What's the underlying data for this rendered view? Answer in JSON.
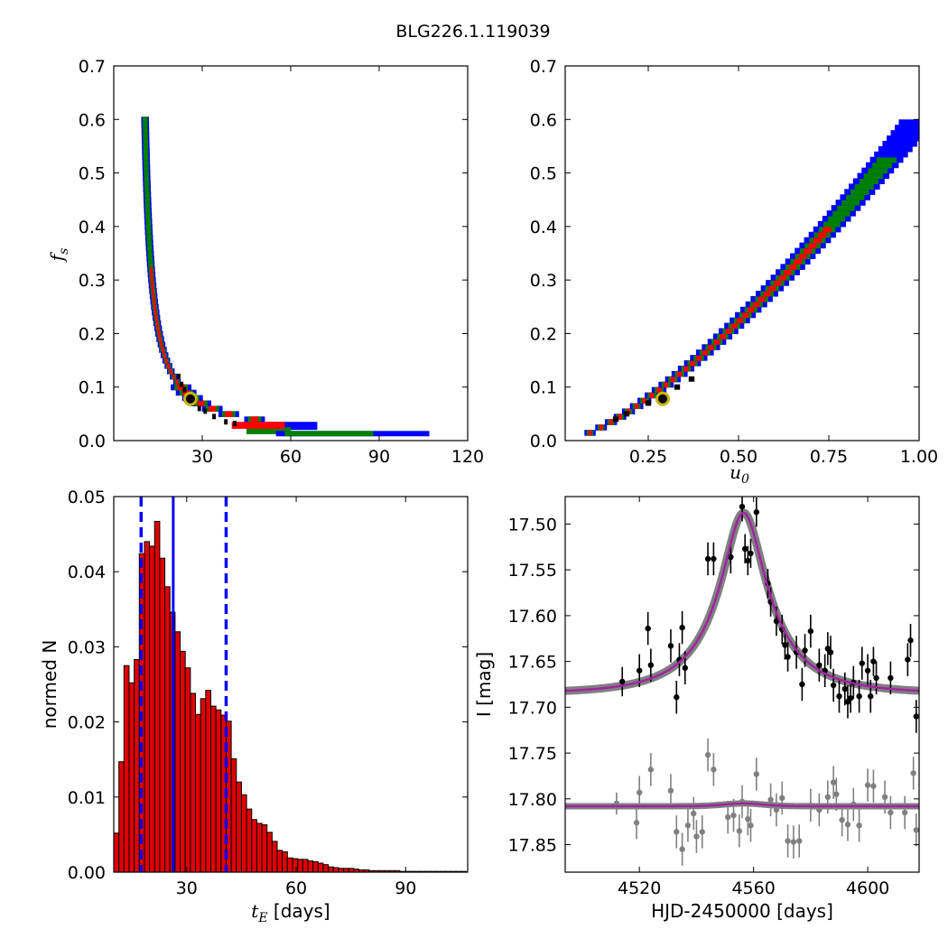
{
  "figure_title": "BLG226.1.119039",
  "colors": {
    "blue": "#0000ff",
    "green": "#008000",
    "red": "#ff0000",
    "black": "#000000",
    "marker": "#c8b400",
    "hist": "#e00000",
    "model": "#a0249f",
    "grey": "#808080"
  },
  "chart_data": [
    {
      "id": "fs-vs-te",
      "type": "heatmap",
      "title": "",
      "xlabel": "",
      "ylabel_var": "f",
      "ylabel_sub": "s",
      "xlim": [
        0,
        120
      ],
      "ylim": [
        0,
        0.7
      ],
      "xticks": [
        30,
        60,
        90,
        120
      ],
      "yticks": [
        0.0,
        0.1,
        0.2,
        0.3,
        0.4,
        0.5,
        0.6,
        0.7
      ],
      "best_fit": {
        "x": 26,
        "y": 0.078
      },
      "contour_note": "confidence regions: blue (outer), green (middle), red (inner), black (best)"
    },
    {
      "id": "fs-vs-u0",
      "type": "heatmap",
      "title": "",
      "xlabel_var": "u",
      "xlabel_sub": "0",
      "ylabel": "",
      "xlim": [
        0.02,
        1.0
      ],
      "ylim": [
        0,
        0.7
      ],
      "xticks": [
        0.25,
        0.5,
        0.75,
        1.0
      ],
      "yticks": [
        0.0,
        0.1,
        0.2,
        0.3,
        0.4,
        0.5,
        0.6,
        0.7
      ],
      "best_fit": {
        "x": 0.29,
        "y": 0.078
      }
    },
    {
      "id": "te-histogram",
      "type": "bar",
      "title": "",
      "xlabel_var": "t",
      "xlabel_sub": "E",
      "xlabel_rest": " [days]",
      "ylabel": "normed N",
      "xlim": [
        10,
        107
      ],
      "ylim": [
        0,
        0.05
      ],
      "xticks": [
        30,
        60,
        90
      ],
      "yticks": [
        0.0,
        0.01,
        0.02,
        0.03,
        0.04,
        0.05
      ],
      "bin_start": 10,
      "bin_width": 1.4,
      "values": [
        0.0052,
        0.0147,
        0.0275,
        0.0252,
        0.0283,
        0.0424,
        0.044,
        0.0434,
        0.0467,
        0.0418,
        0.038,
        0.0346,
        0.032,
        0.0294,
        0.0272,
        0.0238,
        0.021,
        0.0231,
        0.0242,
        0.0221,
        0.0216,
        0.0209,
        0.0201,
        0.0151,
        0.012,
        0.0103,
        0.0084,
        0.007,
        0.0065,
        0.0063,
        0.0053,
        0.0041,
        0.0029,
        0.0027,
        0.0019,
        0.0018,
        0.0017,
        0.0017,
        0.0015,
        0.0014,
        0.0012,
        0.001,
        0.0007,
        0.0006,
        0.0005,
        0.0005,
        0.0005,
        0.0004,
        0.0003,
        0.0003,
        0.0002,
        0.0002,
        0.0002,
        0.0002,
        0.0002,
        0.0002,
        0.0001,
        0.0001,
        0.0001,
        0.0001,
        0.0001,
        0.0001,
        0.0001,
        0.0001,
        0.0001,
        0.0001,
        0.0001,
        0.0001,
        0.0001
      ],
      "median": 26.3,
      "bounds": [
        17.5,
        40.8
      ]
    },
    {
      "id": "lightcurve",
      "type": "scatter",
      "title": "",
      "xlabel": "HJD-2450000 [days]",
      "ylabel": "I [mag]",
      "xlim": [
        4494,
        4618
      ],
      "ylim": [
        17.88,
        17.47
      ],
      "xticks": [
        4520,
        4560,
        4600
      ],
      "yticks": [
        17.5,
        17.55,
        17.6,
        17.65,
        17.7,
        17.75,
        17.8,
        17.85
      ],
      "model": {
        "t0": 4556.5,
        "tE": 26,
        "u0": 0.29,
        "fs": 0.078,
        "base": 17.685
      },
      "residual_base": 17.808,
      "points": [
        [
          4514,
          17.672,
          0.016
        ],
        [
          4520,
          17.66,
          0.018
        ],
        [
          4523,
          17.614,
          0.018
        ],
        [
          4524,
          17.654,
          0.018
        ],
        [
          4531,
          17.633,
          0.018
        ],
        [
          4533,
          17.689,
          0.018
        ],
        [
          4534,
          17.648,
          0.018
        ],
        [
          4535,
          17.613,
          0.018
        ],
        [
          4536,
          17.657,
          0.018
        ],
        [
          4544,
          17.538,
          0.018
        ],
        [
          4546,
          17.538,
          0.018
        ],
        [
          4552,
          17.536,
          0.018
        ],
        [
          4556,
          17.481,
          0.016
        ],
        [
          4557,
          17.527,
          0.016
        ],
        [
          4558,
          17.54,
          0.016
        ],
        [
          4559,
          17.532,
          0.016
        ],
        [
          4561,
          17.487,
          0.016
        ],
        [
          4565,
          17.565,
          0.016
        ],
        [
          4566,
          17.585,
          0.016
        ],
        [
          4568,
          17.606,
          0.016
        ],
        [
          4570,
          17.615,
          0.016
        ],
        [
          4571,
          17.632,
          0.016
        ],
        [
          4572,
          17.645,
          0.016
        ],
        [
          4575,
          17.64,
          0.018
        ],
        [
          4577,
          17.675,
          0.018
        ],
        [
          4578,
          17.638,
          0.018
        ],
        [
          4580,
          17.617,
          0.018
        ],
        [
          4583,
          17.654,
          0.018
        ],
        [
          4586,
          17.636,
          0.018
        ],
        [
          4587,
          17.64,
          0.018
        ],
        [
          4588,
          17.676,
          0.018
        ],
        [
          4590,
          17.688,
          0.018
        ],
        [
          4592,
          17.68,
          0.018
        ],
        [
          4593,
          17.694,
          0.018
        ],
        [
          4595,
          17.673,
          0.018
        ],
        [
          4597,
          17.688,
          0.018
        ],
        [
          4598,
          17.652,
          0.018
        ],
        [
          4600,
          17.66,
          0.018
        ],
        [
          4601,
          17.688,
          0.018
        ],
        [
          4603,
          17.668,
          0.018
        ],
        [
          4608,
          17.668,
          0.018
        ],
        [
          4614,
          17.648,
          0.018
        ],
        [
          4615,
          17.627,
          0.018
        ],
        [
          4617,
          17.71,
          0.018
        ],
        [
          4594,
          17.69,
          0.016
        ],
        [
          4602,
          17.65,
          0.016
        ],
        [
          4585,
          17.66,
          0.018
        ]
      ],
      "residuals": [
        [
          4512,
          17.805,
          0.012
        ],
        [
          4519,
          17.826,
          0.018
        ],
        [
          4520,
          17.793,
          0.018
        ],
        [
          4524,
          17.768,
          0.018
        ],
        [
          4531,
          17.791,
          0.018
        ],
        [
          4533,
          17.836,
          0.018
        ],
        [
          4535,
          17.855,
          0.018
        ],
        [
          4537,
          17.829,
          0.018
        ],
        [
          4539,
          17.816,
          0.018
        ],
        [
          4540,
          17.841,
          0.018
        ],
        [
          4542,
          17.836,
          0.018
        ],
        [
          4544,
          17.752,
          0.018
        ],
        [
          4546,
          17.768,
          0.018
        ],
        [
          4551,
          17.82,
          0.018
        ],
        [
          4553,
          17.818,
          0.018
        ],
        [
          4555,
          17.835,
          0.018
        ],
        [
          4556,
          17.803,
          0.018
        ],
        [
          4558,
          17.822,
          0.018
        ],
        [
          4559,
          17.829,
          0.018
        ],
        [
          4561,
          17.773,
          0.018
        ],
        [
          4566,
          17.801,
          0.018
        ],
        [
          4568,
          17.812,
          0.018
        ],
        [
          4570,
          17.799,
          0.018
        ],
        [
          4572,
          17.846,
          0.018
        ],
        [
          4574,
          17.847,
          0.018
        ],
        [
          4576,
          17.846,
          0.018
        ],
        [
          4580,
          17.807,
          0.018
        ],
        [
          4583,
          17.812,
          0.018
        ],
        [
          4586,
          17.798,
          0.018
        ],
        [
          4588,
          17.782,
          0.018
        ],
        [
          4589,
          17.795,
          0.018
        ],
        [
          4591,
          17.823,
          0.018
        ],
        [
          4593,
          17.828,
          0.018
        ],
        [
          4595,
          17.806,
          0.018
        ],
        [
          4597,
          17.829,
          0.018
        ],
        [
          4600,
          17.785,
          0.018
        ],
        [
          4602,
          17.786,
          0.018
        ],
        [
          4606,
          17.798,
          0.018
        ],
        [
          4608,
          17.815,
          0.018
        ],
        [
          4613,
          17.815,
          0.018
        ],
        [
          4616,
          17.772,
          0.018
        ],
        [
          4617,
          17.834,
          0.018
        ]
      ]
    }
  ]
}
